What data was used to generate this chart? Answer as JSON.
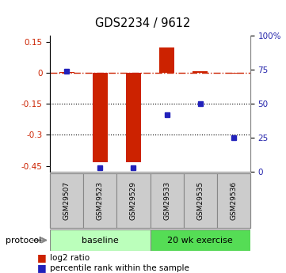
{
  "title": "GDS2234 / 9612",
  "samples": [
    "GSM29507",
    "GSM29523",
    "GSM29529",
    "GSM29533",
    "GSM29535",
    "GSM29536"
  ],
  "log2_ratio": [
    0.004,
    -0.432,
    -0.432,
    0.123,
    0.007,
    -0.003
  ],
  "percentile_rank": [
    74,
    3,
    3,
    42,
    50,
    25
  ],
  "groups": [
    {
      "label": "baseline",
      "indices": [
        0,
        1,
        2
      ],
      "color": "#bbffbb"
    },
    {
      "label": "20 wk exercise",
      "indices": [
        3,
        4,
        5
      ],
      "color": "#55dd55"
    }
  ],
  "ylim_left": [
    -0.48,
    0.18
  ],
  "left_yticks": [
    0.15,
    0.0,
    -0.15,
    -0.3,
    -0.45
  ],
  "left_yticklabels": [
    "0.15",
    "0",
    "-0.15",
    "-0.3",
    "-0.45"
  ],
  "right_yticks": [
    100,
    75,
    50,
    25,
    0
  ],
  "right_yticklabels": [
    "100%",
    "75",
    "50",
    "25",
    "0"
  ],
  "bar_color": "#cc2200",
  "dot_color": "#2222bb",
  "hline_color": "#cc2200",
  "bg_color": "white",
  "bar_width": 0.45,
  "legend_red_label": "log2 ratio",
  "legend_blue_label": "percentile rank within the sample",
  "protocol_label": "protocol",
  "left_ytick_color": "#cc2200",
  "right_ytick_color": "#2222aa"
}
